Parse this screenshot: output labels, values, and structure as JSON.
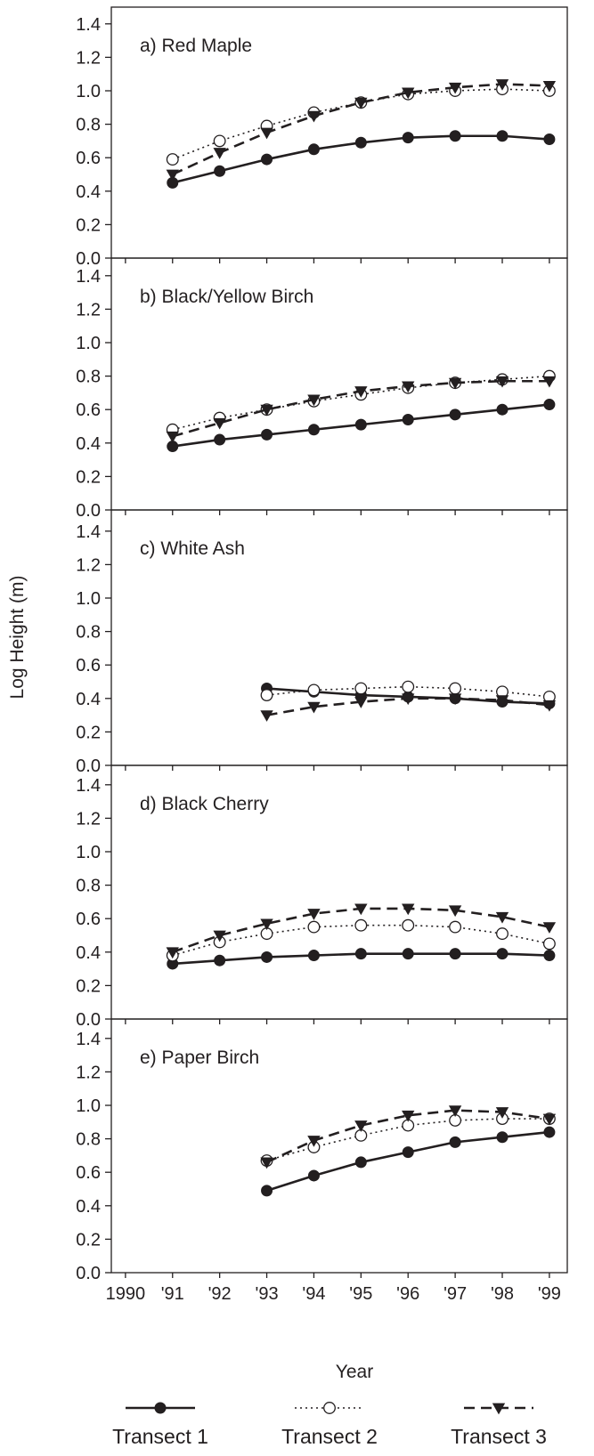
{
  "chart_data": {
    "type": "line",
    "ylabel": "Log Height (m)",
    "xlabel": "Year",
    "x_ticks": [
      "1990",
      "'91",
      "'92",
      "'93",
      "'94",
      "'95",
      "'96",
      "'97",
      "'98",
      "'99"
    ],
    "y_ticks": [
      "0.0",
      "0.2",
      "0.4",
      "0.6",
      "0.8",
      "1.0",
      "1.2",
      "1.4"
    ],
    "ylim": [
      0,
      1.5
    ],
    "xlim": [
      1990,
      1999
    ],
    "grid": false,
    "legend_position": "bottom",
    "legend": [
      {
        "name": "Transect 1",
        "style": "solid",
        "marker": "filled-circle"
      },
      {
        "name": "Transect 2",
        "style": "dotted",
        "marker": "open-circle"
      },
      {
        "name": "Transect 3",
        "style": "dashed",
        "marker": "filled-triangle-down"
      }
    ],
    "panels": [
      {
        "title": "a)  Red Maple",
        "x": [
          1991,
          1992,
          1993,
          1994,
          1995,
          1996,
          1997,
          1998,
          1999
        ],
        "series": [
          {
            "name": "Transect 1",
            "values": [
              0.45,
              0.52,
              0.59,
              0.65,
              0.69,
              0.72,
              0.73,
              0.73,
              0.71
            ]
          },
          {
            "name": "Transect 2",
            "values": [
              0.59,
              0.7,
              0.79,
              0.87,
              0.93,
              0.98,
              1.0,
              1.01,
              1.0
            ]
          },
          {
            "name": "Transect 3",
            "values": [
              0.5,
              0.63,
              0.75,
              0.85,
              0.93,
              0.99,
              1.02,
              1.04,
              1.03
            ]
          }
        ]
      },
      {
        "title": "b)  Black/Yellow Birch",
        "x": [
          1991,
          1992,
          1993,
          1994,
          1995,
          1996,
          1997,
          1998,
          1999
        ],
        "series": [
          {
            "name": "Transect 1",
            "values": [
              0.38,
              0.42,
              0.45,
              0.48,
              0.51,
              0.54,
              0.57,
              0.6,
              0.63
            ]
          },
          {
            "name": "Transect 2",
            "values": [
              0.48,
              0.55,
              0.6,
              0.65,
              0.69,
              0.73,
              0.76,
              0.78,
              0.8
            ]
          },
          {
            "name": "Transect 3",
            "values": [
              0.44,
              0.52,
              0.6,
              0.66,
              0.71,
              0.74,
              0.76,
              0.77,
              0.77
            ]
          }
        ]
      },
      {
        "title": "c)  White Ash",
        "x": [
          1993,
          1994,
          1995,
          1996,
          1997,
          1998,
          1999
        ],
        "series": [
          {
            "name": "Transect 1",
            "values": [
              0.46,
              0.44,
              0.42,
              0.41,
              0.4,
              0.38,
              0.37
            ]
          },
          {
            "name": "Transect 2",
            "values": [
              0.42,
              0.45,
              0.46,
              0.47,
              0.46,
              0.44,
              0.41
            ]
          },
          {
            "name": "Transect 3",
            "values": [
              0.3,
              0.35,
              0.38,
              0.4,
              0.4,
              0.39,
              0.36
            ]
          }
        ]
      },
      {
        "title": "d)  Black Cherry",
        "x": [
          1991,
          1992,
          1993,
          1994,
          1995,
          1996,
          1997,
          1998,
          1999
        ],
        "series": [
          {
            "name": "Transect 1",
            "values": [
              0.33,
              0.35,
              0.37,
              0.38,
              0.39,
              0.39,
              0.39,
              0.39,
              0.38
            ]
          },
          {
            "name": "Transect 2",
            "values": [
              0.38,
              0.46,
              0.51,
              0.55,
              0.56,
              0.56,
              0.55,
              0.51,
              0.45
            ]
          },
          {
            "name": "Transect 3",
            "values": [
              0.4,
              0.5,
              0.57,
              0.63,
              0.66,
              0.66,
              0.65,
              0.61,
              0.55
            ]
          }
        ]
      },
      {
        "title": "e)  Paper Birch",
        "x": [
          1993,
          1994,
          1995,
          1996,
          1997,
          1998,
          1999
        ],
        "series": [
          {
            "name": "Transect 1",
            "values": [
              0.49,
              0.58,
              0.66,
              0.72,
              0.78,
              0.81,
              0.84
            ]
          },
          {
            "name": "Transect 2",
            "values": [
              0.67,
              0.75,
              0.82,
              0.88,
              0.91,
              0.92,
              0.92
            ]
          },
          {
            "name": "Transect 3",
            "values": [
              0.66,
              0.79,
              0.88,
              0.94,
              0.97,
              0.96,
              0.92
            ]
          }
        ]
      }
    ],
    "colors": {
      "line": "#231f20",
      "background": "#ffffff"
    }
  }
}
